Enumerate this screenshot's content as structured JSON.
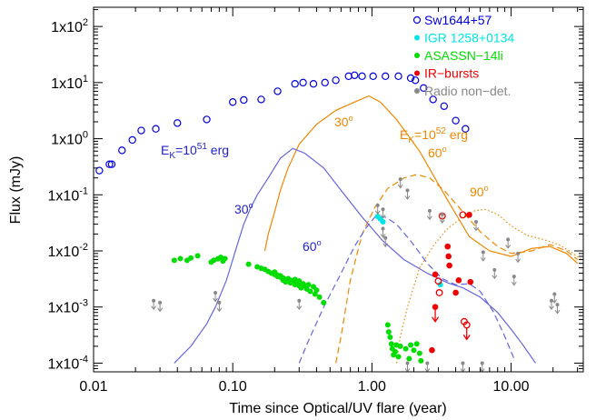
{
  "chart_data": {
    "type": "scatter",
    "xlabel": "Time since Optical/UV flare (year)",
    "ylabel": "Flux (mJy)",
    "x_scale": "log",
    "y_scale": "log",
    "xlim": [
      0.01,
      33
    ],
    "ylim": [
      7e-05,
      220
    ],
    "x_ticks": [
      0.01,
      0.1,
      1,
      10
    ],
    "x_tick_labels": [
      "0.01",
      "0.10",
      "1.00",
      "10.00"
    ],
    "y_ticks": [
      0.0001,
      0.001,
      0.01,
      0.1,
      1,
      10,
      100
    ],
    "y_tick_labels": [
      {
        "base": "1x10",
        "exp": "-4"
      },
      {
        "base": "1x10",
        "exp": "-3"
      },
      {
        "base": "1x10",
        "exp": "-2"
      },
      {
        "base": "1x10",
        "exp": "-1"
      },
      {
        "base": "1x10",
        "exp": "0"
      },
      {
        "base": "1x10",
        "exp": "1"
      },
      {
        "base": "1x10",
        "exp": "2"
      }
    ],
    "legend": [
      {
        "label": "Sw1644+57",
        "color": "#0000dd",
        "marker": "open-circle"
      },
      {
        "label": "IGR 1258+0134",
        "color": "#00e5e5",
        "marker": "filled-circle"
      },
      {
        "label": "ASASSN−14li",
        "color": "#00dd00",
        "marker": "filled-circle"
      },
      {
        "label": "IR−bursts",
        "color": "#ee0000",
        "marker": "filled-circle"
      },
      {
        "label": "Radio non−det.",
        "color": "#888888",
        "marker": "filled-circle"
      }
    ],
    "annotations": {
      "ek51": {
        "main": "E",
        "sub": "K",
        "rest": "=10",
        "sup": "51",
        "tail": " erg",
        "color": "#2222cc"
      },
      "ek52": {
        "main": "E",
        "sub": "K",
        "rest": "=10",
        "sup": "52",
        "tail": " erg",
        "color": "#ee8800"
      },
      "deg30_orange": {
        "text": "30",
        "sup": "o",
        "color": "#ee8800"
      },
      "deg60_orange": {
        "text": "60",
        "sup": "o",
        "color": "#ee8800"
      },
      "deg90_orange": {
        "text": "90",
        "sup": "o",
        "color": "#ee8800"
      },
      "deg30_blue": {
        "text": "30",
        "sup": "o",
        "color": "#2222cc"
      },
      "deg60_blue": {
        "text": "60",
        "sup": "o",
        "color": "#2222cc"
      }
    },
    "series": [
      {
        "name": "Sw1644+57",
        "color": "#0000dd",
        "marker": "open-circle",
        "points": [
          [
            0.011,
            0.27
          ],
          [
            0.013,
            0.35
          ],
          [
            0.0135,
            0.35
          ],
          [
            0.016,
            0.62
          ],
          [
            0.019,
            0.95
          ],
          [
            0.022,
            1.4
          ],
          [
            0.028,
            1.5
          ],
          [
            0.04,
            1.9
          ],
          [
            0.065,
            2.2
          ],
          [
            0.1,
            4.5
          ],
          [
            0.12,
            4.9
          ],
          [
            0.16,
            5.0
          ],
          [
            0.21,
            7.0
          ],
          [
            0.28,
            9.5
          ],
          [
            0.32,
            10
          ],
          [
            0.38,
            9.5
          ],
          [
            0.46,
            10
          ],
          [
            0.55,
            11
          ],
          [
            0.68,
            13
          ],
          [
            0.75,
            13.5
          ],
          [
            0.85,
            13
          ],
          [
            1.02,
            13
          ],
          [
            1.25,
            13
          ],
          [
            1.55,
            13
          ],
          [
            1.9,
            12
          ],
          [
            2.05,
            11
          ],
          [
            2.35,
            8
          ],
          [
            2.75,
            5
          ],
          [
            3.3,
            3.8
          ],
          [
            4.0,
            2.1
          ],
          [
            4.7,
            1.5
          ]
        ]
      },
      {
        "name": "IGR 1258+0134",
        "color": "#00e5e5",
        "marker": "filled-circle",
        "points": [
          [
            1.1,
            0.041
          ],
          [
            1.15,
            0.037
          ],
          [
            1.2,
            0.033
          ],
          [
            3.1,
            0.0025
          ]
        ]
      },
      {
        "name": "ASASSN-14li",
        "color": "#00dd00",
        "marker": "filled-circle",
        "points": [
          [
            0.038,
            0.0068
          ],
          [
            0.042,
            0.0073
          ],
          [
            0.047,
            0.0068
          ],
          [
            0.05,
            0.0075
          ],
          [
            0.056,
            0.0082
          ],
          [
            0.07,
            0.0063
          ],
          [
            0.073,
            0.0068
          ],
          [
            0.078,
            0.0072
          ],
          [
            0.082,
            0.0077
          ],
          [
            0.085,
            0.0066
          ],
          [
            0.088,
            0.0073
          ],
          [
            0.13,
            0.0058
          ],
          [
            0.15,
            0.0052
          ],
          [
            0.16,
            0.0049
          ],
          [
            0.17,
            0.0047
          ],
          [
            0.18,
            0.0043
          ],
          [
            0.19,
            0.004
          ],
          [
            0.2,
            0.0038
          ],
          [
            0.2,
            0.0042
          ],
          [
            0.21,
            0.0037
          ],
          [
            0.21,
            0.0035
          ],
          [
            0.22,
            0.0034
          ],
          [
            0.22,
            0.0036
          ],
          [
            0.23,
            0.003
          ],
          [
            0.23,
            0.0033
          ],
          [
            0.24,
            0.0031
          ],
          [
            0.24,
            0.0028
          ],
          [
            0.25,
            0.0029
          ],
          [
            0.25,
            0.0032
          ],
          [
            0.26,
            0.0027
          ],
          [
            0.26,
            0.003
          ],
          [
            0.27,
            0.0028
          ],
          [
            0.28,
            0.0025
          ],
          [
            0.28,
            0.0031
          ],
          [
            0.29,
            0.0027
          ],
          [
            0.3,
            0.0024
          ],
          [
            0.3,
            0.0029
          ],
          [
            0.31,
            0.0022
          ],
          [
            0.32,
            0.0026
          ],
          [
            0.33,
            0.0024
          ],
          [
            0.34,
            0.0021
          ],
          [
            0.35,
            0.0025
          ],
          [
            0.36,
            0.0019
          ],
          [
            0.38,
            0.0023
          ],
          [
            0.39,
            0.0017
          ],
          [
            0.4,
            0.002
          ],
          [
            0.42,
            0.0015
          ],
          [
            0.45,
            0.0012
          ],
          [
            1.3,
            0.00048
          ],
          [
            1.32,
            0.00036
          ],
          [
            1.35,
            0.00029
          ],
          [
            1.38,
            0.00022
          ],
          [
            1.4,
            0.00018
          ],
          [
            1.43,
            0.00014
          ],
          [
            1.47,
            0.00016
          ],
          [
            1.5,
            0.00021
          ],
          [
            1.55,
            0.00013
          ],
          [
            1.6,
            0.0002
          ],
          [
            1.75,
            0.00018
          ],
          [
            1.85,
            0.00012
          ],
          [
            1.9,
            0.00021
          ],
          [
            2.0,
            0.00017
          ],
          [
            2.1,
            0.00022
          ],
          [
            2.2,
            0.00015
          ],
          [
            2.25,
            0.00011
          ]
        ]
      },
      {
        "name": "IR-bursts",
        "color": "#ee0000",
        "marker": "mixed",
        "points": [
          [
            2.85,
            0.0038,
            1
          ],
          [
            3.0,
            0.0029,
            0
          ],
          [
            3.05,
            0.0018,
            0
          ],
          [
            3.5,
            0.012,
            1
          ],
          [
            3.55,
            0.008,
            1
          ],
          [
            3.6,
            0.0055,
            1
          ],
          [
            4.0,
            0.0018,
            1
          ],
          [
            4.2,
            0.003,
            1
          ],
          [
            5.0,
            0.044,
            1
          ],
          [
            5.1,
            0.0028,
            1
          ],
          [
            3.2,
            0.042,
            0
          ],
          [
            4.5,
            0.044,
            0
          ],
          [
            2.85,
            0.001,
            1
          ],
          [
            2.7,
            0.00017,
            1
          ],
          [
            4.6,
            0.00055,
            0
          ],
          [
            4.8,
            0.00048,
            0
          ]
        ]
      },
      {
        "name": "Radio non-det.",
        "color": "#888888",
        "marker": "upper-limit",
        "points": [
          [
            0.027,
            0.0013
          ],
          [
            0.03,
            0.0012
          ],
          [
            0.075,
            0.0018
          ],
          [
            0.08,
            0.0012
          ],
          [
            0.3,
            0.0013
          ],
          [
            1.1,
            0.065
          ],
          [
            1.2,
            0.055
          ],
          [
            1.6,
            0.19
          ],
          [
            1.8,
            0.12
          ],
          [
            1.2,
            0.025
          ],
          [
            1.25,
            0.017
          ],
          [
            2.6,
            0.052
          ],
          [
            3.2,
            0.045
          ],
          [
            5.6,
            0.033
          ],
          [
            6.3,
            0.0095
          ],
          [
            7.6,
            0.0046
          ],
          [
            9.5,
            0.016
          ],
          [
            10.5,
            0.0035
          ],
          [
            11.2,
            0.009
          ],
          [
            19.5,
            0.0013
          ],
          [
            20.5,
            0.0017
          ],
          [
            21.5,
            0.0011
          ],
          [
            1.8,
            0.0001
          ],
          [
            2.5,
            0.0001
          ],
          [
            4.5,
            0.0001
          ],
          [
            6.2,
            0.0001
          ]
        ]
      },
      {
        "name": "model_orange_30",
        "color": "#ee8800",
        "dash": "solid",
        "points": [
          [
            0.17,
            0.01
          ],
          [
            0.18,
            0.02
          ],
          [
            0.2,
            0.05
          ],
          [
            0.22,
            0.12
          ],
          [
            0.25,
            0.3
          ],
          [
            0.3,
            0.8
          ],
          [
            0.4,
            1.8
          ],
          [
            0.55,
            3.2
          ],
          [
            0.75,
            4.5
          ],
          [
            0.95,
            5.8
          ],
          [
            1.15,
            4.5
          ],
          [
            1.5,
            2.2
          ],
          [
            2.2,
            0.6
          ],
          [
            3.5,
            0.08
          ],
          [
            5,
            0.018
          ],
          [
            7,
            0.01
          ],
          [
            10,
            0.008
          ],
          [
            14,
            0.011
          ],
          [
            19,
            0.012
          ],
          [
            25,
            0.009
          ],
          [
            30,
            0.006
          ]
        ]
      },
      {
        "name": "model_orange_60",
        "color": "#ee8800",
        "dash": "dashed",
        "points": [
          [
            0.55,
            0.0001
          ],
          [
            0.6,
            0.0003
          ],
          [
            0.7,
            0.003
          ],
          [
            0.85,
            0.02
          ],
          [
            1.05,
            0.06
          ],
          [
            1.3,
            0.13
          ],
          [
            1.7,
            0.2
          ],
          [
            2.1,
            0.23
          ],
          [
            2.6,
            0.2
          ],
          [
            3.3,
            0.12
          ],
          [
            4.5,
            0.05
          ],
          [
            6,
            0.022
          ],
          [
            8,
            0.012
          ],
          [
            10,
            0.009
          ],
          [
            14,
            0.01
          ],
          [
            19,
            0.013
          ],
          [
            25,
            0.01
          ],
          [
            30,
            0.007
          ]
        ]
      },
      {
        "name": "model_orange_90",
        "color": "#ee8800",
        "dash": "dotted",
        "points": [
          [
            1.5,
            0.0001
          ],
          [
            1.6,
            0.0003
          ],
          [
            1.8,
            0.001
          ],
          [
            2.2,
            0.005
          ],
          [
            2.8,
            0.013
          ],
          [
            3.5,
            0.025
          ],
          [
            4.5,
            0.04
          ],
          [
            5.5,
            0.052
          ],
          [
            6.5,
            0.055
          ],
          [
            8,
            0.045
          ],
          [
            10,
            0.028
          ],
          [
            13,
            0.019
          ],
          [
            17,
            0.016
          ],
          [
            22,
            0.013
          ],
          [
            28,
            0.009
          ],
          [
            32,
            0.007
          ]
        ]
      },
      {
        "name": "model_blue_30",
        "color": "#6666dd",
        "dash": "solid",
        "points": [
          [
            0.038,
            0.0001
          ],
          [
            0.05,
            0.0002
          ],
          [
            0.065,
            0.0005
          ],
          [
            0.075,
            0.001
          ],
          [
            0.09,
            0.003
          ],
          [
            0.1,
            0.007
          ],
          [
            0.11,
            0.015
          ],
          [
            0.12,
            0.03
          ],
          [
            0.135,
            0.06
          ],
          [
            0.15,
            0.1
          ],
          [
            0.18,
            0.2
          ],
          [
            0.22,
            0.45
          ],
          [
            0.27,
            0.67
          ],
          [
            0.33,
            0.55
          ],
          [
            0.45,
            0.3
          ],
          [
            0.6,
            0.12
          ],
          [
            0.85,
            0.04
          ],
          [
            1.2,
            0.015
          ],
          [
            1.7,
            0.007
          ],
          [
            2.5,
            0.004
          ],
          [
            3.5,
            0.0027
          ],
          [
            4.5,
            0.0022
          ],
          [
            6,
            0.0015
          ],
          [
            8,
            0.0008
          ],
          [
            10,
            0.0004
          ],
          [
            12,
            0.00022
          ],
          [
            15,
            0.0001
          ]
        ]
      },
      {
        "name": "model_blue_60",
        "color": "#6666dd",
        "dash": "dashed",
        "points": [
          [
            0.3,
            0.0001
          ],
          [
            0.35,
            0.00025
          ],
          [
            0.45,
            0.001
          ],
          [
            0.6,
            0.004
          ],
          [
            0.75,
            0.012
          ],
          [
            0.9,
            0.025
          ],
          [
            1.05,
            0.04
          ],
          [
            1.25,
            0.04
          ],
          [
            1.5,
            0.03
          ],
          [
            1.9,
            0.015
          ],
          [
            2.5,
            0.006
          ],
          [
            3.2,
            0.0032
          ],
          [
            4,
            0.0025
          ],
          [
            5,
            0.0026
          ],
          [
            6,
            0.0019
          ],
          [
            7.5,
            0.0008
          ],
          [
            9,
            0.0003
          ],
          [
            10.5,
            0.00012
          ]
        ]
      }
    ]
  }
}
